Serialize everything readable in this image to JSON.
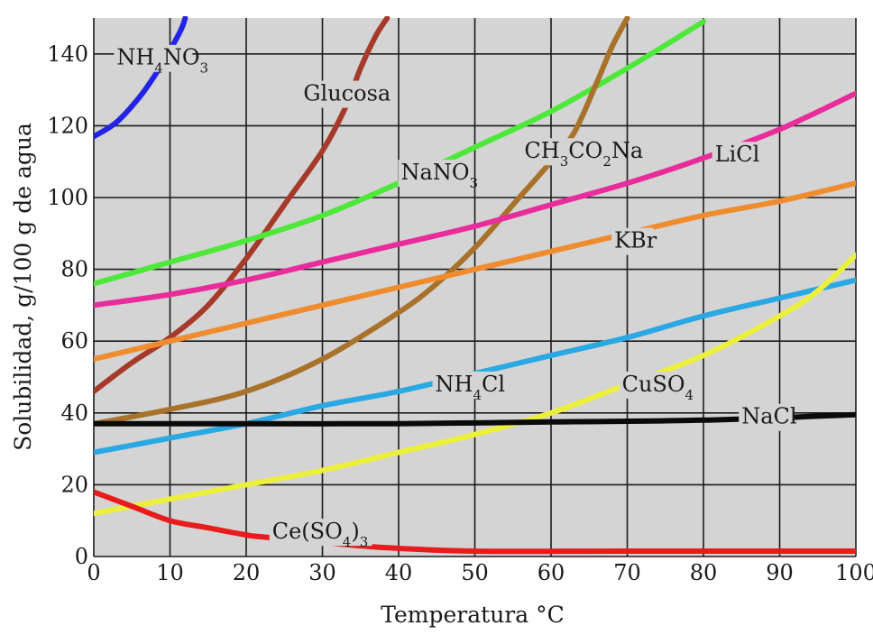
{
  "chart_data": {
    "type": "line",
    "xlabel": "Temperatura °C",
    "ylabel": "Solubilidad, g/100 g de agua",
    "xlim": [
      0,
      100
    ],
    "ylim": [
      0,
      150
    ],
    "x_ticks": [
      "0",
      "10",
      "20",
      "30",
      "40",
      "50",
      "60",
      "70",
      "80",
      "90",
      "100"
    ],
    "y_ticks": [
      "0",
      "20",
      "40",
      "60",
      "80",
      "100",
      "120",
      "140"
    ],
    "grid": true,
    "colors": {
      "background": "#d4d4d4",
      "grid": "#1a1a1a",
      "text": "#1a1a1a"
    },
    "series": [
      {
        "name": "NH4NO3",
        "label": {
          "parts": [
            [
              "NH",
              ""
            ],
            [
              "4",
              "sub"
            ],
            [
              "NO",
              ""
            ],
            [
              "3",
              "sub"
            ]
          ]
        },
        "color": "#2323e6",
        "points": [
          [
            0,
            117
          ],
          [
            3,
            121
          ],
          [
            6,
            128
          ],
          [
            8,
            134
          ],
          [
            10,
            141
          ],
          [
            11.5,
            147
          ],
          [
            12,
            150
          ]
        ]
      },
      {
        "name": "Glucosa",
        "label": {
          "parts": [
            [
              "Glucosa",
              ""
            ]
          ]
        },
        "color": "#a63a2a",
        "points": [
          [
            0,
            46
          ],
          [
            5,
            54
          ],
          [
            10,
            61
          ],
          [
            15,
            70
          ],
          [
            20,
            83
          ],
          [
            25,
            98
          ],
          [
            30,
            113
          ],
          [
            33,
            125
          ],
          [
            35,
            136
          ],
          [
            37,
            145
          ],
          [
            38.5,
            150
          ]
        ]
      },
      {
        "name": "NaNO3",
        "label": {
          "parts": [
            [
              "NaNO",
              ""
            ],
            [
              "3",
              "sub"
            ]
          ]
        },
        "color": "#4ee83a",
        "points": [
          [
            0,
            76
          ],
          [
            10,
            82
          ],
          [
            20,
            88
          ],
          [
            30,
            95
          ],
          [
            40,
            104
          ],
          [
            50,
            114
          ],
          [
            60,
            124
          ],
          [
            70,
            136
          ],
          [
            80,
            149
          ]
        ]
      },
      {
        "name": "CH3CO2Na",
        "label": {
          "parts": [
            [
              "CH",
              ""
            ],
            [
              "3",
              "sub"
            ],
            [
              "CO",
              ""
            ],
            [
              "2",
              "sub"
            ],
            [
              "Na",
              ""
            ]
          ]
        },
        "color": "#a8722a",
        "points": [
          [
            0,
            37
          ],
          [
            10,
            41
          ],
          [
            20,
            46
          ],
          [
            30,
            55
          ],
          [
            40,
            68
          ],
          [
            45,
            76
          ],
          [
            50,
            86
          ],
          [
            55,
            98
          ],
          [
            60,
            110
          ],
          [
            63,
            118
          ],
          [
            66,
            132
          ],
          [
            68,
            142
          ],
          [
            70,
            150
          ]
        ]
      },
      {
        "name": "LiCl",
        "label": {
          "parts": [
            [
              "LiCl",
              ""
            ]
          ]
        },
        "color": "#e92c9c",
        "points": [
          [
            0,
            70
          ],
          [
            10,
            73
          ],
          [
            20,
            77
          ],
          [
            30,
            82
          ],
          [
            40,
            87
          ],
          [
            50,
            92
          ],
          [
            60,
            98
          ],
          [
            70,
            104
          ],
          [
            80,
            111
          ],
          [
            90,
            119
          ],
          [
            100,
            129
          ]
        ]
      },
      {
        "name": "KBr",
        "label": {
          "parts": [
            [
              "KBr",
              ""
            ]
          ]
        },
        "color": "#ef8c2e",
        "points": [
          [
            0,
            55
          ],
          [
            10,
            60
          ],
          [
            20,
            65
          ],
          [
            30,
            70
          ],
          [
            40,
            75
          ],
          [
            50,
            80
          ],
          [
            60,
            85
          ],
          [
            70,
            90
          ],
          [
            80,
            95
          ],
          [
            90,
            99
          ],
          [
            100,
            104
          ]
        ]
      },
      {
        "name": "NH4Cl",
        "label": {
          "parts": [
            [
              "NH",
              ""
            ],
            [
              "4",
              "sub"
            ],
            [
              "Cl",
              ""
            ]
          ]
        },
        "color": "#2aa8e4",
        "points": [
          [
            0,
            29
          ],
          [
            10,
            33
          ],
          [
            20,
            37
          ],
          [
            30,
            42
          ],
          [
            40,
            46
          ],
          [
            50,
            51
          ],
          [
            60,
            56
          ],
          [
            70,
            61
          ],
          [
            80,
            67
          ],
          [
            90,
            72
          ],
          [
            100,
            77
          ]
        ]
      },
      {
        "name": "CuSO4",
        "label": {
          "parts": [
            [
              "CuSO",
              ""
            ],
            [
              "4",
              "sub"
            ]
          ]
        },
        "color": "#ecf03a",
        "points": [
          [
            0,
            12
          ],
          [
            10,
            16
          ],
          [
            20,
            20
          ],
          [
            30,
            24
          ],
          [
            40,
            29
          ],
          [
            50,
            34
          ],
          [
            60,
            40
          ],
          [
            70,
            48
          ],
          [
            80,
            56
          ],
          [
            90,
            67
          ],
          [
            95,
            74
          ],
          [
            100,
            84
          ]
        ]
      },
      {
        "name": "NaCl",
        "label": {
          "parts": [
            [
              "NaCl",
              ""
            ]
          ]
        },
        "color": "#0a0a0a",
        "points": [
          [
            0,
            37
          ],
          [
            20,
            37
          ],
          [
            40,
            37
          ],
          [
            60,
            37.5
          ],
          [
            80,
            38
          ],
          [
            100,
            39.5
          ]
        ]
      },
      {
        "name": "Ce(SO4)3",
        "label": {
          "parts": [
            [
              "Ce(SO",
              ""
            ],
            [
              "4",
              "sub"
            ],
            [
              ")",
              ""
            ],
            [
              "3",
              "sub"
            ]
          ]
        },
        "color": "#e81c1c",
        "points": [
          [
            0,
            18
          ],
          [
            5,
            14
          ],
          [
            10,
            10
          ],
          [
            15,
            8
          ],
          [
            20,
            6
          ],
          [
            22,
            5.5
          ],
          [
            30,
            4
          ],
          [
            38,
            2.5
          ],
          [
            50,
            1.5
          ],
          [
            70,
            1.5
          ],
          [
            100,
            1.5
          ]
        ]
      }
    ]
  }
}
